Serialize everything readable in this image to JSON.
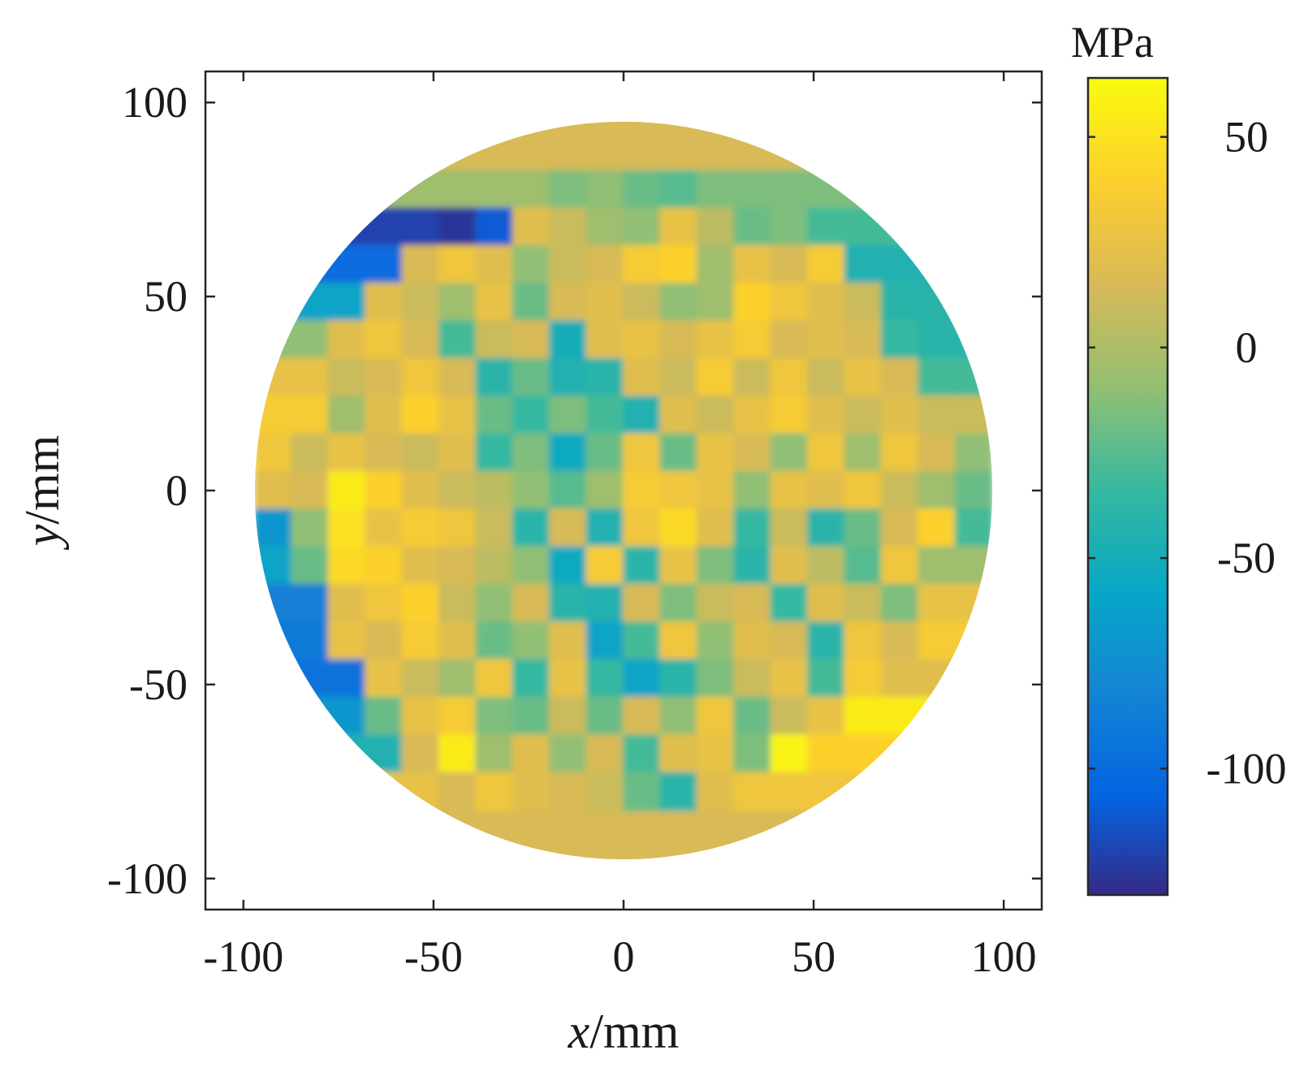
{
  "chart_data": {
    "type": "heatmap",
    "title": "",
    "xlabel_var": "x",
    "xlabel_unit": "/mm",
    "ylabel_var": "y",
    "ylabel_unit": "/mm",
    "xlim": [
      -110,
      110
    ],
    "ylim": [
      -108,
      108
    ],
    "xticks": [
      -100,
      -50,
      0,
      50,
      100
    ],
    "yticks": [
      100,
      50,
      0,
      -50,
      -100
    ],
    "xtick_labels": [
      "-100",
      "-50",
      "0",
      "50",
      "100"
    ],
    "ytick_labels": [
      "100",
      "50",
      "0",
      "-50",
      "-100"
    ],
    "disk_radius": 97,
    "colorbar": {
      "label": "MPa",
      "range": [
        -130,
        64
      ],
      "ticks": [
        50,
        0,
        -50,
        -100
      ],
      "tick_labels": [
        "50",
        "0",
        "-50",
        "-100"
      ],
      "colormap": "parula"
    },
    "grid_cell_mm": 9.7,
    "value_grid": [
      [
        null,
        null,
        null,
        null,
        null,
        null,
        null,
        -5,
        -15,
        -10,
        -20,
        -25,
        -15,
        null,
        null,
        null,
        null,
        null,
        null,
        null
      ],
      [
        null,
        null,
        null,
        null,
        -120,
        -125,
        -110,
        20,
        10,
        -5,
        -10,
        25,
        5,
        -20,
        -15,
        -30,
        null,
        null,
        null,
        null
      ],
      [
        null,
        null,
        null,
        -100,
        15,
        30,
        20,
        -10,
        10,
        15,
        35,
        40,
        -5,
        25,
        15,
        35,
        -45,
        null,
        null,
        null
      ],
      [
        null,
        null,
        -60,
        20,
        10,
        -5,
        25,
        -20,
        15,
        20,
        10,
        -10,
        -5,
        40,
        30,
        20,
        10,
        -40,
        null,
        null
      ],
      [
        null,
        -10,
        20,
        30,
        15,
        -30,
        10,
        15,
        -50,
        20,
        25,
        15,
        25,
        35,
        15,
        20,
        15,
        -35,
        -40,
        null
      ],
      [
        null,
        25,
        10,
        15,
        30,
        15,
        -40,
        -20,
        -45,
        -40,
        20,
        10,
        35,
        10,
        30,
        10,
        25,
        15,
        -30,
        null
      ],
      [
        null,
        35,
        -5,
        20,
        40,
        25,
        -20,
        -35,
        -15,
        -30,
        -45,
        20,
        10,
        25,
        35,
        20,
        10,
        20,
        10,
        null
      ],
      [
        30,
        10,
        25,
        15,
        10,
        20,
        -35,
        -15,
        -55,
        -20,
        30,
        -20,
        25,
        15,
        -10,
        30,
        -5,
        30,
        15,
        -10
      ],
      [
        20,
        15,
        55,
        40,
        20,
        10,
        5,
        -10,
        -25,
        -5,
        35,
        30,
        25,
        -10,
        25,
        20,
        30,
        10,
        -5,
        -20
      ],
      [
        -70,
        -10,
        50,
        25,
        35,
        30,
        10,
        -40,
        15,
        -45,
        30,
        45,
        20,
        -35,
        10,
        -40,
        -20,
        15,
        40,
        -30
      ],
      [
        -60,
        -20,
        45,
        40,
        20,
        15,
        5,
        -10,
        -55,
        35,
        -40,
        25,
        -15,
        -40,
        20,
        5,
        -25,
        30,
        -5,
        null
      ],
      [
        null,
        -85,
        20,
        30,
        40,
        10,
        -10,
        15,
        -40,
        -45,
        15,
        -15,
        10,
        15,
        -35,
        20,
        10,
        -15,
        25,
        null
      ],
      [
        null,
        -90,
        25,
        15,
        35,
        20,
        -20,
        -10,
        20,
        -60,
        -30,
        30,
        -10,
        20,
        15,
        -40,
        30,
        15,
        35,
        null
      ],
      [
        null,
        null,
        -95,
        25,
        10,
        -5,
        30,
        -35,
        25,
        -35,
        -60,
        -40,
        -15,
        10,
        25,
        -30,
        35,
        20,
        null,
        null
      ],
      [
        null,
        null,
        -70,
        -20,
        25,
        35,
        -15,
        -20,
        10,
        -20,
        15,
        -10,
        30,
        -20,
        10,
        25,
        55,
        null,
        null,
        null
      ],
      [
        null,
        null,
        null,
        -45,
        15,
        55,
        -5,
        20,
        -10,
        15,
        -30,
        20,
        25,
        -15,
        60,
        40,
        null,
        null,
        null,
        null
      ],
      [
        null,
        null,
        null,
        null,
        25,
        15,
        30,
        20,
        15,
        10,
        -20,
        -40,
        20,
        30,
        null,
        null,
        null,
        null,
        null,
        null
      ]
    ]
  }
}
